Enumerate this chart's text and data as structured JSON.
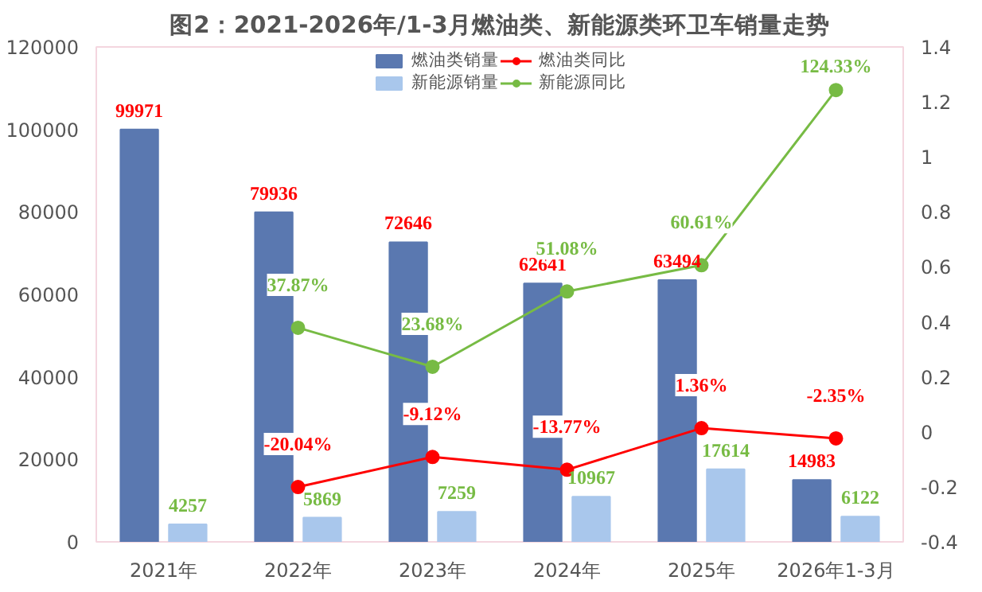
{
  "chart_data": {
    "type": "bar",
    "title": "图2：2021-2026年/1-3月燃油类、新能源类环卫车销量走势",
    "categories": [
      "2021年",
      "2022年",
      "2023年",
      "2024年",
      "2025年",
      "2026年1-3月"
    ],
    "series": [
      {
        "name": "燃油类销量",
        "color": "#5a78b0",
        "values": [
          99971,
          79936,
          72646,
          62641,
          63494,
          14983
        ],
        "value_labels": [
          "99971",
          "79936",
          "72646",
          "62641",
          "63494",
          "14983"
        ]
      },
      {
        "name": "新能源销量",
        "color": "#a9c7ec",
        "values": [
          4257,
          5869,
          7259,
          10967,
          17614,
          6122
        ],
        "value_labels": [
          "4257",
          "5869",
          "7259",
          "10967",
          "17614",
          "6122"
        ]
      },
      {
        "name": "燃油类同比",
        "type": "line",
        "axis": "y2",
        "color": "#ff0000",
        "values": [
          null,
          -0.2004,
          -0.0912,
          -0.1377,
          0.0136,
          -0.0235
        ],
        "value_labels": [
          null,
          "-20.04%",
          "-9.12%",
          "-13.77%",
          "1.36%",
          "-2.35%"
        ]
      },
      {
        "name": "新能源同比",
        "type": "line",
        "axis": "y2",
        "color": "#77bb44",
        "values": [
          null,
          0.3787,
          0.2368,
          0.5108,
          0.6061,
          1.2433
        ],
        "value_labels": [
          null,
          "37.87%",
          "23.68%",
          "51.08%",
          "60.61%",
          "124.33%"
        ]
      }
    ],
    "ylim": [
      0,
      120000
    ],
    "yticks": [
      0,
      20000,
      40000,
      60000,
      80000,
      100000,
      120000
    ],
    "y2lim": [
      -0.4,
      1.4
    ],
    "y2ticks": [
      {
        "value": -0.4,
        "label": "-0.4"
      },
      {
        "value": -0.2,
        "label": "-0.2"
      },
      0,
      {
        "value": 0.2,
        "label": "0.2"
      },
      {
        "value": 0.4,
        "label": "0.4"
      },
      {
        "value": 0.6,
        "label": "0.6"
      },
      {
        "value": 0.8,
        "label": "0.8"
      },
      1,
      {
        "value": 1.2,
        "label": "1.2"
      },
      {
        "value": 1.4,
        "label": "1.4"
      }
    ],
    "legend": "top",
    "marker": "circle",
    "grid": false
  }
}
